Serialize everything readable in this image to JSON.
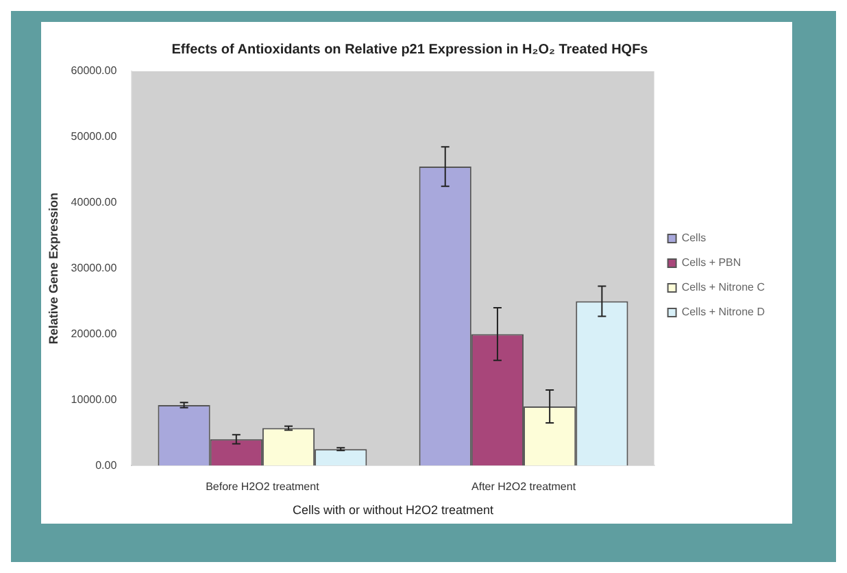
{
  "chart_data": {
    "type": "bar",
    "title": "Effects of Antioxidants on Relative p21 Expression in H₂O₂ Treated HQFs",
    "xlabel": "Cells with or without H2O2 treatment",
    "ylabel": "Relative Gene Expression",
    "categories": [
      "Before H2O2 treatment",
      "After H2O2 treatment"
    ],
    "series": [
      {
        "name": "Cells",
        "color": "#a8a8dc",
        "values": [
          9200,
          45500
        ],
        "errors": [
          400,
          3000
        ]
      },
      {
        "name": "Cells + PBN",
        "color": "#a8467a",
        "values": [
          4000,
          20000
        ],
        "errors": [
          700,
          4000
        ]
      },
      {
        "name": "Cells + Nitrone C",
        "color": "#fdfdd8",
        "values": [
          5700,
          9000
        ],
        "errors": [
          300,
          2500
        ]
      },
      {
        "name": "Cells + Nitrone D",
        "color": "#d8f0f8",
        "values": [
          2500,
          25000
        ],
        "errors": [
          200,
          2300
        ]
      }
    ],
    "ylim": [
      0,
      60000
    ],
    "yticks": [
      {
        "value": 0,
        "label": "0.00"
      },
      {
        "value": 10000,
        "label": "10000.00"
      },
      {
        "value": 20000,
        "label": "20000.00"
      },
      {
        "value": 30000,
        "label": "30000.00"
      },
      {
        "value": 40000,
        "label": "40000.00"
      },
      {
        "value": 50000,
        "label": "50000.00"
      },
      {
        "value": 60000,
        "label": "60000.00"
      }
    ],
    "grid": false,
    "legend": "right"
  }
}
